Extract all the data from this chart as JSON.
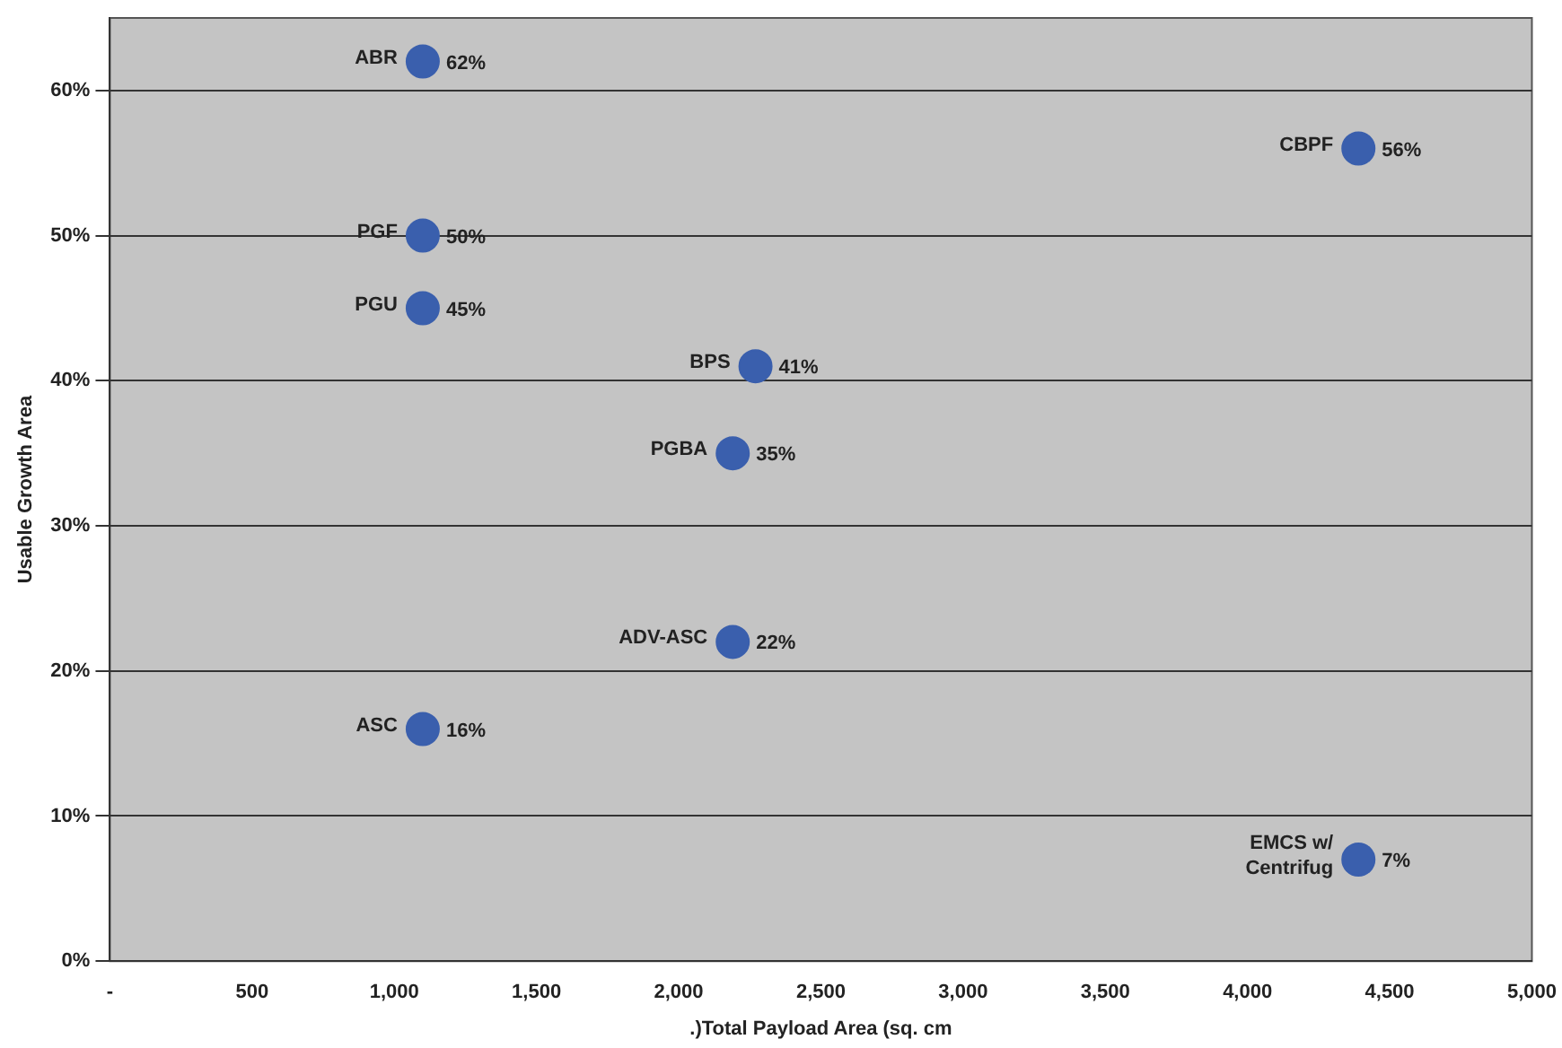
{
  "chart_data": {
    "type": "scatter",
    "xlabel": ".)Total Payload Area (sq. cm",
    "ylabel": "Usable Growth Area",
    "series": [
      {
        "color": "#3a5fad",
        "x": [
          1100,
          4390,
          1100,
          1100,
          2270,
          2190,
          2190,
          1100,
          4390
        ],
        "values": [
          62,
          56,
          50,
          45,
          41,
          35,
          22,
          16,
          7
        ],
        "value_labels": [
          "62%",
          "56%",
          "50%",
          "45%",
          "41%",
          "35%",
          "22%",
          "16%",
          "7%"
        ]
      }
    ],
    "annotations": [
      {
        "text": "ABR",
        "x": 1100,
        "y": 62
      },
      {
        "text": "CBPF",
        "x": 4390,
        "y": 56
      },
      {
        "text": "PGF",
        "x": 1100,
        "y": 50
      },
      {
        "text": "PGU",
        "x": 1100,
        "y": 45
      },
      {
        "text": "BPS",
        "x": 2270,
        "y": 41
      },
      {
        "text": "PGBA",
        "x": 2190,
        "y": 35
      },
      {
        "text": "ADV-ASC",
        "x": 2190,
        "y": 22
      },
      {
        "text": "ASC",
        "x": 1100,
        "y": 16
      },
      {
        "text": "EMCS w/\nCentrifug",
        "x": 4390,
        "y": 7
      }
    ],
    "xlim": [
      0,
      5000
    ],
    "xticks": [
      {
        "value": 0,
        "label": "-"
      },
      500,
      {
        "value": 1000,
        "label": "1,000"
      },
      {
        "value": 1500,
        "label": "1,500"
      },
      {
        "value": 2000,
        "label": "2,000"
      },
      {
        "value": 2500,
        "label": "2,500"
      },
      {
        "value": 3000,
        "label": "3,000"
      },
      {
        "value": 3500,
        "label": "3,500"
      },
      {
        "value": 4000,
        "label": "4,000"
      },
      {
        "value": 4500,
        "label": "4,500"
      },
      {
        "value": 5000,
        "label": "5,000"
      }
    ],
    "ylim": [
      0,
      65
    ],
    "yticks": [
      {
        "value": 0,
        "label": "0%"
      },
      {
        "value": 10,
        "label": "10%"
      },
      {
        "value": 20,
        "label": "20%"
      },
      {
        "value": 30,
        "label": "30%"
      },
      {
        "value": 40,
        "label": "40%"
      },
      {
        "value": 50,
        "label": "50%"
      },
      {
        "value": 60,
        "label": "60%"
      }
    ],
    "grid": "y",
    "marker": "circle",
    "legend": false
  }
}
